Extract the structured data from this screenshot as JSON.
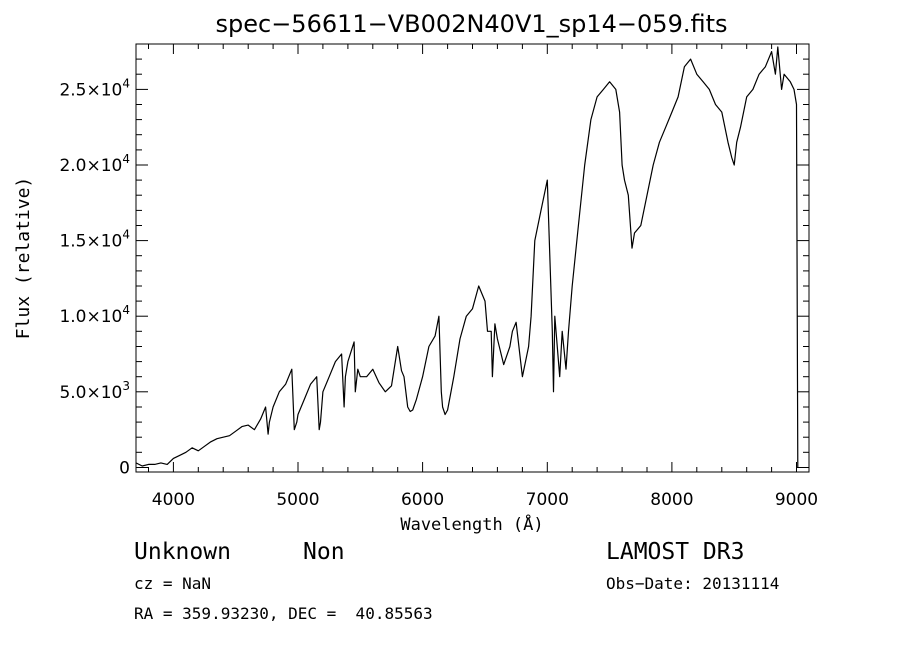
{
  "chart_data": {
    "type": "line",
    "title": "spec−56611−VB002N40V1_sp14−059.fits",
    "xlabel": "Wavelength (Å)",
    "ylabel": "Flux (relative)",
    "xlim": [
      3700,
      9100
    ],
    "ylim": [
      -300,
      28000
    ],
    "xticks": [
      4000,
      5000,
      6000,
      7000,
      8000,
      9000
    ],
    "xtick_labels": [
      "4000",
      "5000",
      "6000",
      "7000",
      "8000",
      "9000"
    ],
    "yticks": [
      0,
      5000,
      10000,
      15000,
      20000,
      25000
    ],
    "ytick_labels": [
      {
        "mant": "0",
        "exp": ""
      },
      {
        "mant": "5.0×10",
        "exp": "3"
      },
      {
        "mant": "1.0×10",
        "exp": "4"
      },
      {
        "mant": "1.5×10",
        "exp": "4"
      },
      {
        "mant": "2.0×10",
        "exp": "4"
      },
      {
        "mant": "2.5×10",
        "exp": "4"
      }
    ],
    "series": [
      {
        "name": "spectrum",
        "x": [
          3700,
          3750,
          3800,
          3850,
          3900,
          3950,
          4000,
          4050,
          4100,
          4150,
          4200,
          4250,
          4300,
          4350,
          4400,
          4450,
          4500,
          4550,
          4600,
          4650,
          4700,
          4740,
          4760,
          4770,
          4800,
          4850,
          4900,
          4950,
          4970,
          4990,
          5000,
          5050,
          5100,
          5150,
          5170,
          5180,
          5190,
          5200,
          5250,
          5300,
          5350,
          5370,
          5380,
          5400,
          5450,
          5460,
          5480,
          5500,
          5550,
          5600,
          5650,
          5700,
          5750,
          5800,
          5830,
          5850,
          5880,
          5900,
          5920,
          5950,
          6000,
          6050,
          6100,
          6130,
          6150,
          6160,
          6180,
          6200,
          6250,
          6300,
          6350,
          6400,
          6450,
          6500,
          6520,
          6550,
          6560,
          6580,
          6600,
          6650,
          6700,
          6720,
          6750,
          6800,
          6850,
          6870,
          6900,
          6950,
          7000,
          7020,
          7040,
          7050,
          7060,
          7100,
          7120,
          7150,
          7170,
          7200,
          7250,
          7300,
          7350,
          7400,
          7450,
          7500,
          7550,
          7580,
          7600,
          7620,
          7650,
          7680,
          7700,
          7750,
          7800,
          7850,
          7900,
          7950,
          8000,
          8050,
          8100,
          8150,
          8200,
          8250,
          8300,
          8350,
          8400,
          8450,
          8480,
          8500,
          8520,
          8550,
          8600,
          8650,
          8700,
          8750,
          8800,
          8830,
          8850,
          8880,
          8900,
          8950,
          8980,
          9000,
          9010
        ],
        "y": [
          300,
          100,
          200,
          200,
          300,
          200,
          600,
          800,
          1000,
          1300,
          1100,
          1400,
          1700,
          1900,
          2000,
          2100,
          2400,
          2700,
          2800,
          2500,
          3200,
          4000,
          2200,
          3000,
          4000,
          5000,
          5500,
          6500,
          2500,
          3000,
          3500,
          4500,
          5500,
          6000,
          2500,
          3000,
          4000,
          5000,
          6000,
          7000,
          7500,
          4000,
          6000,
          7000,
          8300,
          5000,
          6500,
          6000,
          6000,
          6500,
          5600,
          5000,
          5400,
          8000,
          6400,
          6000,
          4000,
          3700,
          3800,
          4500,
          6000,
          8000,
          8700,
          10000,
          5000,
          4000,
          3500,
          3800,
          6000,
          8500,
          10000,
          10500,
          12000,
          11000,
          9000,
          9000,
          6000,
          9500,
          8500,
          6800,
          8000,
          9000,
          9600,
          6000,
          8000,
          10000,
          15000,
          17000,
          19000,
          14000,
          9000,
          5000,
          10000,
          6000,
          9000,
          6500,
          9000,
          12000,
          16000,
          20000,
          23000,
          24500,
          25000,
          25500,
          25000,
          23500,
          20000,
          19000,
          18000,
          14500,
          15500,
          16000,
          18000,
          20000,
          21500,
          22500,
          23500,
          24500,
          26500,
          27000,
          26000,
          25500,
          25000,
          24000,
          23500,
          21500,
          20500,
          20000,
          21500,
          22500,
          24500,
          25000,
          26000,
          26500,
          27500,
          26000,
          27800,
          25000,
          26000,
          25500,
          25000,
          24000,
          0
        ]
      }
    ]
  },
  "footer": {
    "object_class": "Unknown",
    "subclass": "Non",
    "survey": "LAMOST DR3",
    "cz": "cz = NaN",
    "obs_date": "Obs−Date: 20131114",
    "radec": "RA = 359.93230, DEC =  40.85563"
  }
}
